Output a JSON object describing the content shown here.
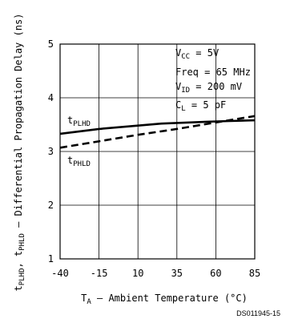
{
  "chart_data": {
    "type": "line",
    "xlabel": "TA – Ambient Temperature (°C)",
    "ylabel": "tPLHD, tPHLD – Differential Propagation Delay (ns)",
    "x_ticks": [
      "-40",
      "-15",
      "10",
      "35",
      "60",
      "85"
    ],
    "y_ticks": [
      "1",
      "2",
      "3",
      "4",
      "5"
    ],
    "xlim": [
      -40,
      85
    ],
    "ylim": [
      1,
      5
    ],
    "grid": true,
    "series": [
      {
        "name": "tPLHD",
        "style": "solid",
        "x": [
          -40,
          -15,
          25,
          60,
          85
        ],
        "y": [
          3.33,
          3.42,
          3.52,
          3.56,
          3.58
        ]
      },
      {
        "name": "tPHLD",
        "style": "dashed",
        "x": [
          -40,
          -15,
          10,
          35,
          60,
          85
        ],
        "y": [
          3.07,
          3.19,
          3.31,
          3.42,
          3.54,
          3.66
        ]
      }
    ],
    "conditions": [
      "VCC = 5V",
      "Freq = 65 MHz",
      "VID = 200 mV",
      "CL = 5 pF"
    ]
  },
  "footer_code": "DS011945-15",
  "colors": {
    "line": "#000000",
    "grid": "#000000",
    "background": "#ffffff"
  }
}
